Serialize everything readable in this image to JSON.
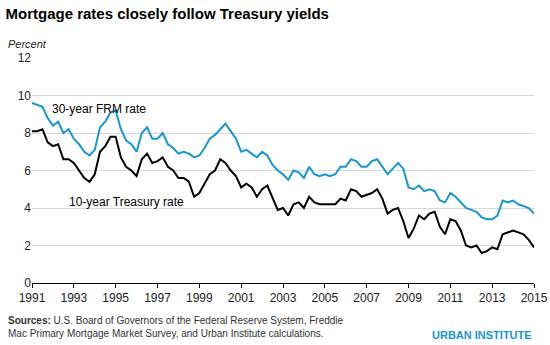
{
  "chart_data": {
    "type": "line",
    "title": "Mortgage rates closely follow Treasury yields",
    "y_label": "Percent",
    "x": [
      1991,
      1991.25,
      1991.5,
      1991.75,
      1992,
      1992.25,
      1992.5,
      1992.75,
      1993,
      1993.25,
      1993.5,
      1993.75,
      1994,
      1994.25,
      1994.5,
      1994.75,
      1995,
      1995.25,
      1995.5,
      1995.75,
      1996,
      1996.25,
      1996.5,
      1996.75,
      1997,
      1997.25,
      1997.5,
      1997.75,
      1998,
      1998.25,
      1998.5,
      1998.75,
      1999,
      1999.25,
      1999.5,
      1999.75,
      2000,
      2000.25,
      2000.5,
      2000.75,
      2001,
      2001.25,
      2001.5,
      2001.75,
      2002,
      2002.25,
      2002.5,
      2002.75,
      2003,
      2003.25,
      2003.5,
      2003.75,
      2004,
      2004.25,
      2004.5,
      2004.75,
      2005,
      2005.25,
      2005.5,
      2005.75,
      2006,
      2006.25,
      2006.5,
      2006.75,
      2007,
      2007.25,
      2007.5,
      2007.75,
      2008,
      2008.25,
      2008.5,
      2008.75,
      2009,
      2009.25,
      2009.5,
      2009.75,
      2010,
      2010.25,
      2010.5,
      2010.75,
      2011,
      2011.25,
      2011.5,
      2011.75,
      2012,
      2012.25,
      2012.5,
      2012.75,
      2013,
      2013.25,
      2013.5,
      2013.75,
      2014,
      2014.25,
      2014.5,
      2014.75,
      2015
    ],
    "series": [
      {
        "name": "30-year FRM rate",
        "color": "#1696d2",
        "values": [
          9.6,
          9.5,
          9.4,
          8.8,
          8.4,
          8.6,
          8.0,
          8.2,
          7.7,
          7.4,
          7.0,
          6.8,
          7.1,
          8.3,
          8.6,
          9.1,
          9.2,
          8.2,
          7.6,
          7.4,
          7.0,
          8.0,
          8.3,
          7.7,
          7.7,
          8.0,
          7.4,
          7.2,
          6.9,
          7.0,
          6.9,
          6.7,
          6.8,
          7.2,
          7.7,
          7.9,
          8.2,
          8.5,
          8.1,
          7.7,
          7.0,
          7.1,
          6.9,
          6.7,
          7.0,
          6.8,
          6.3,
          6.0,
          5.8,
          5.5,
          6.0,
          5.9,
          5.6,
          6.2,
          5.8,
          5.7,
          5.8,
          5.7,
          5.8,
          6.2,
          6.2,
          6.6,
          6.5,
          6.2,
          6.2,
          6.5,
          6.6,
          6.2,
          5.8,
          6.1,
          6.4,
          6.1,
          5.1,
          5.0,
          5.2,
          4.9,
          5.0,
          4.9,
          4.4,
          4.3,
          4.8,
          4.6,
          4.3,
          4.0,
          3.9,
          3.8,
          3.5,
          3.4,
          3.4,
          3.6,
          4.4,
          4.3,
          4.4,
          4.2,
          4.1,
          4.0,
          3.7
        ]
      },
      {
        "name": "10-year Treasury rate",
        "color": "#000000",
        "values": [
          8.1,
          8.1,
          8.2,
          7.5,
          7.3,
          7.4,
          6.6,
          6.6,
          6.4,
          6.0,
          5.6,
          5.4,
          5.8,
          7.0,
          7.3,
          7.8,
          7.8,
          6.7,
          6.2,
          6.0,
          5.7,
          6.6,
          6.9,
          6.4,
          6.5,
          6.7,
          6.2,
          6.0,
          5.6,
          5.6,
          5.4,
          4.6,
          4.8,
          5.3,
          5.8,
          6.0,
          6.6,
          6.4,
          6.0,
          5.7,
          5.1,
          5.3,
          5.1,
          4.6,
          5.0,
          5.2,
          4.5,
          3.9,
          4.0,
          3.6,
          4.2,
          4.3,
          4.0,
          4.6,
          4.3,
          4.2,
          4.2,
          4.2,
          4.2,
          4.5,
          4.4,
          5.0,
          4.9,
          4.6,
          4.7,
          4.8,
          5.0,
          4.5,
          3.7,
          3.9,
          4.0,
          3.3,
          2.4,
          2.9,
          3.6,
          3.4,
          3.7,
          3.8,
          3.0,
          2.6,
          3.4,
          3.3,
          2.8,
          2.0,
          1.9,
          2.0,
          1.6,
          1.7,
          1.9,
          1.8,
          2.6,
          2.7,
          2.8,
          2.7,
          2.6,
          2.3,
          1.9
        ]
      }
    ],
    "xlim": [
      1991,
      2015
    ],
    "xticks": [
      1991,
      1993,
      1995,
      1997,
      1999,
      2001,
      2003,
      2005,
      2007,
      2009,
      2011,
      2013,
      2015
    ],
    "ylim": [
      0,
      12
    ],
    "yticks": [
      0,
      2,
      4,
      6,
      8,
      10,
      12
    ],
    "grid": true,
    "source": [
      "Sources: U.S. Board of Governors of the Federal Reserve System, Freddie",
      "Mac Primary Mortgage Market Survey, and Urban Institute calculations."
    ],
    "credit": "URBAN INSTITUTE"
  }
}
